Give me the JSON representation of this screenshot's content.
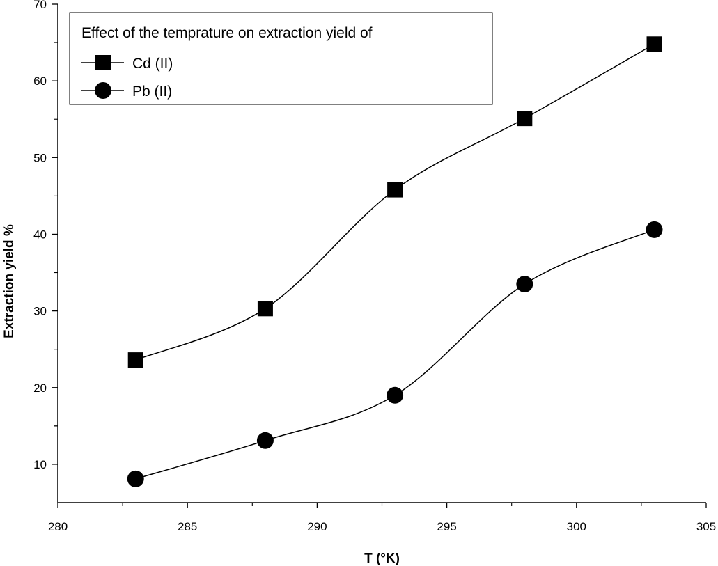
{
  "chart_data": {
    "type": "line",
    "title": "",
    "xlabel": "T (°K)",
    "ylabel": "Extraction yield %",
    "xlim": [
      280,
      305
    ],
    "ylim": [
      5,
      70
    ],
    "x_ticks": [
      280,
      285,
      290,
      295,
      300,
      305
    ],
    "y_ticks": [
      10,
      20,
      30,
      40,
      50,
      60,
      70
    ],
    "grid": false,
    "smooth": true,
    "legend": {
      "title": "Effect of the temprature on extraction yield of",
      "placement": "top-left"
    },
    "series": [
      {
        "name": "Cd (II)",
        "marker": "square",
        "color": "#000000",
        "x": [
          283,
          288,
          293,
          298,
          303
        ],
        "y": [
          23.6,
          30.3,
          45.8,
          55.1,
          64.8
        ]
      },
      {
        "name": "Pb (II)",
        "marker": "circle",
        "color": "#000000",
        "x": [
          283,
          288,
          293,
          298,
          303
        ],
        "y": [
          8.1,
          13.1,
          19.0,
          33.5,
          40.6
        ]
      }
    ]
  }
}
